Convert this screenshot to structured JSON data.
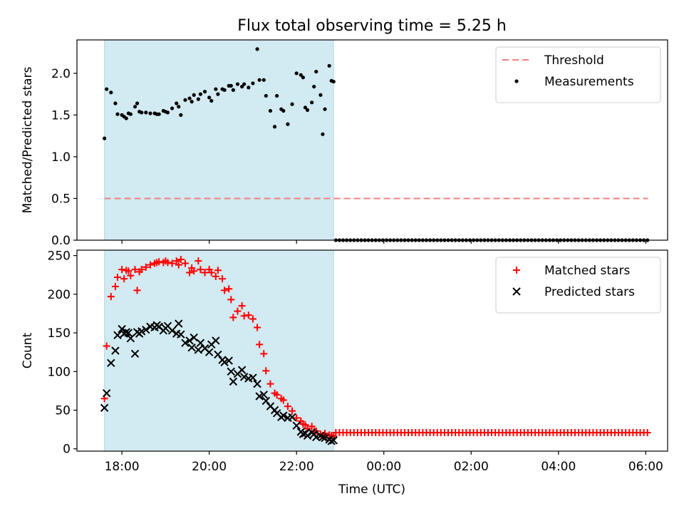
{
  "chart_data": {
    "title": "Flux total observing time = 5.25 h",
    "xlabel": "Time (UTC)",
    "x_unit": "hours (UTC clock, values beyond 24 wrap to next day)",
    "xlim": [
      16.97,
      30.5
    ],
    "xticks": [
      18,
      20,
      22,
      24,
      26,
      28,
      30
    ],
    "xtick_labels": [
      "18:00",
      "20:00",
      "22:00",
      "00:00",
      "02:00",
      "04:00",
      "06:00"
    ],
    "shaded_span": [
      17.6,
      22.85
    ],
    "shade_color": "#add8e6",
    "panels": [
      {
        "type": "scatter",
        "ylabel": "Matched/Predicted stars",
        "ylim": [
          0,
          2.4
        ],
        "yticks": [
          0.0,
          0.5,
          1.0,
          1.5,
          2.0
        ],
        "ytick_labels": [
          "0.0",
          "0.5",
          "1.0",
          "1.5",
          "2.0"
        ],
        "legend_position": "top-right",
        "threshold": {
          "name": "Threshold",
          "value": 0.5,
          "x_range": [
            17.6,
            30.05
          ],
          "color": "#f08080",
          "style": "dashed"
        },
        "series": [
          {
            "name": "Measurements",
            "color": "#000000",
            "marker": "dot",
            "x": [
              17.6,
              17.65,
              17.75,
              17.85,
              17.9,
              18.0,
              18.05,
              18.1,
              18.15,
              18.2,
              18.3,
              18.35,
              18.4,
              18.45,
              18.55,
              18.65,
              18.75,
              18.8,
              18.85,
              18.95,
              19.0,
              19.05,
              19.15,
              19.25,
              19.3,
              19.35,
              19.45,
              19.55,
              19.6,
              19.65,
              19.75,
              19.8,
              19.9,
              20.0,
              20.05,
              20.15,
              20.2,
              20.3,
              20.35,
              20.45,
              20.5,
              20.55,
              20.65,
              20.75,
              20.8,
              20.9,
              21.0,
              21.1,
              21.15,
              21.25,
              21.3,
              21.4,
              21.5,
              21.55,
              21.65,
              21.7,
              21.8,
              21.9,
              22.0,
              22.1,
              22.15,
              22.2,
              22.25,
              22.35,
              22.4,
              22.45,
              22.55,
              22.6,
              22.65,
              22.75,
              22.8,
              22.85
            ],
            "y": [
              1.22,
              1.81,
              1.77,
              1.64,
              1.51,
              1.5,
              1.48,
              1.46,
              1.52,
              1.51,
              1.6,
              1.64,
              1.54,
              1.53,
              1.53,
              1.52,
              1.52,
              1.51,
              1.51,
              1.55,
              1.54,
              1.53,
              1.58,
              1.64,
              1.6,
              1.5,
              1.68,
              1.7,
              1.66,
              1.74,
              1.69,
              1.75,
              1.78,
              1.71,
              1.67,
              1.81,
              1.75,
              1.81,
              1.8,
              1.85,
              1.85,
              1.8,
              1.87,
              1.84,
              1.87,
              1.83,
              1.88,
              2.29,
              1.92,
              1.92,
              1.73,
              1.55,
              1.36,
              1.73,
              1.57,
              1.55,
              1.39,
              1.63,
              2.0,
              1.98,
              1.95,
              1.59,
              1.56,
              1.65,
              1.84,
              2.02,
              1.74,
              1.27,
              1.57,
              2.09,
              1.91,
              1.9
            ]
          },
          {
            "name": "",
            "color": "#000000",
            "marker": "dot",
            "x_start": 22.9,
            "x_end": 30.05,
            "x_step": 0.083,
            "value": 0.0
          }
        ]
      },
      {
        "type": "scatter",
        "ylabel": "Count",
        "ylim": [
          -3,
          257
        ],
        "yticks": [
          0,
          50,
          100,
          150,
          200,
          250
        ],
        "ytick_labels": [
          "0",
          "50",
          "100",
          "150",
          "200",
          "250"
        ],
        "legend_position": "top-right",
        "series": [
          {
            "name": "Matched stars",
            "color": "#ff0000",
            "marker": "plus",
            "x": [
              17.6,
              17.65,
              17.75,
              17.85,
              17.9,
              18.0,
              18.05,
              18.1,
              18.15,
              18.2,
              18.3,
              18.35,
              18.4,
              18.45,
              18.55,
              18.65,
              18.75,
              18.8,
              18.85,
              18.95,
              19.0,
              19.05,
              19.15,
              19.25,
              19.3,
              19.35,
              19.45,
              19.55,
              19.6,
              19.65,
              19.75,
              19.8,
              19.9,
              20.0,
              20.05,
              20.15,
              20.2,
              20.3,
              20.35,
              20.45,
              20.5,
              20.55,
              20.65,
              20.75,
              20.8,
              20.9,
              21.0,
              21.1,
              21.15,
              21.25,
              21.3,
              21.4,
              21.5,
              21.55,
              21.65,
              21.7,
              21.8,
              21.9,
              22.0,
              22.1,
              22.15,
              22.2,
              22.25,
              22.35,
              22.4,
              22.45,
              22.55,
              22.6,
              22.65,
              22.75,
              22.8,
              22.85
            ],
            "y": [
              65,
              133,
              197,
              210,
              222,
              232,
              220,
              231,
              230,
              224,
              232,
              205,
              229,
              232,
              235,
              238,
              240,
              241,
              242,
              241,
              243,
              241,
              240,
              243,
              238,
              245,
              240,
              228,
              234,
              230,
              243,
              232,
              228,
              232,
              228,
              223,
              231,
              220,
              205,
              207,
              193,
              170,
              178,
              185,
              172,
              173,
              168,
              157,
              135,
              123,
              101,
              84,
              72,
              70,
              65,
              63,
              55,
              49,
              40,
              36,
              32,
              31,
              26,
              29,
              23,
              23,
              19,
              17,
              20,
              18,
              17,
              16
            ],
            "x_tail_start": 22.9,
            "x_tail_end": 30.05,
            "x_tail_step": 0.083,
            "tail_value": 21
          },
          {
            "name": "Predicted stars",
            "color": "#000000",
            "marker": "x",
            "x": [
              17.6,
              17.65,
              17.75,
              17.85,
              17.9,
              18.0,
              18.05,
              18.1,
              18.15,
              18.2,
              18.3,
              18.35,
              18.4,
              18.45,
              18.55,
              18.65,
              18.75,
              18.8,
              18.85,
              18.95,
              19.0,
              19.05,
              19.15,
              19.25,
              19.3,
              19.35,
              19.45,
              19.55,
              19.6,
              19.65,
              19.75,
              19.8,
              19.9,
              20.0,
              20.05,
              20.15,
              20.2,
              20.3,
              20.35,
              20.45,
              20.5,
              20.55,
              20.65,
              20.75,
              20.8,
              20.9,
              21.0,
              21.1,
              21.15,
              21.25,
              21.3,
              21.4,
              21.5,
              21.55,
              21.65,
              21.7,
              21.8,
              21.9,
              22.0,
              22.1,
              22.15,
              22.2,
              22.25,
              22.35,
              22.4,
              22.45,
              22.55,
              22.6,
              22.65,
              22.75,
              22.8,
              22.85
            ],
            "y": [
              53,
              72,
              111,
              127,
              147,
              155,
              149,
              151,
              150,
              143,
              123,
              151,
              149,
              152,
              154,
              158,
              157,
              160,
              158,
              153,
              156,
              159,
              153,
              149,
              162,
              148,
              137,
              140,
              131,
              144,
              128,
              137,
              130,
              125,
              135,
              140,
              122,
              115,
              112,
              114,
              100,
              87,
              97,
              102,
              93,
              91,
              92,
              84,
              68,
              70,
              62,
              55,
              50,
              46,
              41,
              43,
              40,
              41,
              30,
              22,
              19,
              20,
              17,
              21,
              19,
              15,
              17,
              15,
              14,
              12,
              10,
              11
            ]
          }
        ]
      }
    ]
  }
}
